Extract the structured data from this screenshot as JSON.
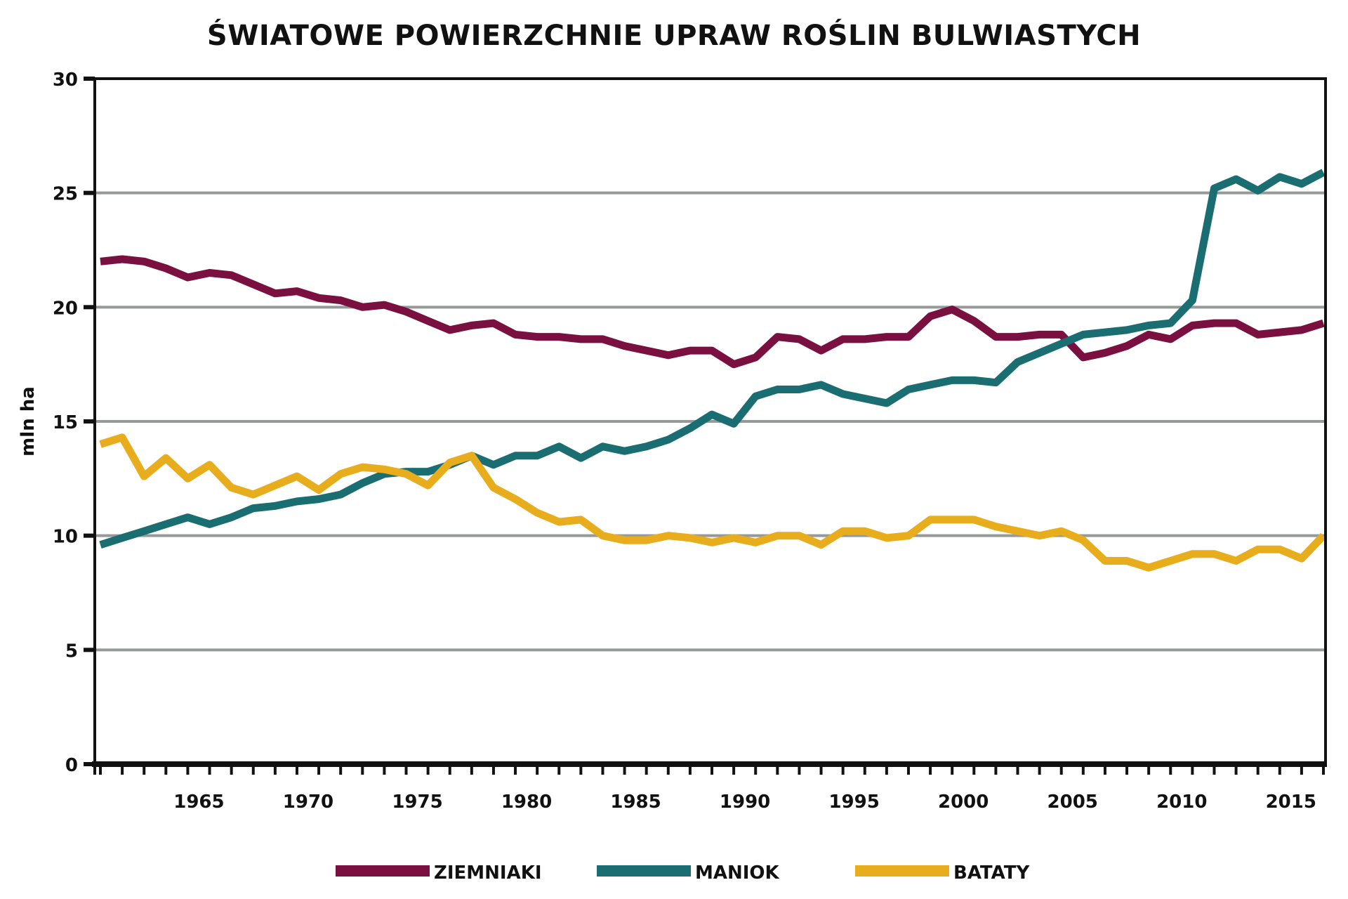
{
  "chart_data": {
    "type": "line",
    "title": "ŚWIATOWE POWIERZCHNIE UPRAW ROŚLIN BULWIASTYCH",
    "xlabel": "",
    "ylabel": "mln ha",
    "xlim": [
      1960.7,
      2017.3
    ],
    "ylim": [
      0,
      30
    ],
    "yticks": [
      0,
      5,
      10,
      15,
      20,
      25,
      30
    ],
    "xticks": [
      1965,
      1970,
      1975,
      1980,
      1985,
      1990,
      1995,
      2000,
      2005,
      2010,
      2015
    ],
    "grid": true,
    "legend": "bottom",
    "x": [
      1961,
      1962,
      1963,
      1964,
      1965,
      1966,
      1967,
      1968,
      1969,
      1970,
      1971,
      1972,
      1973,
      1974,
      1975,
      1976,
      1977,
      1978,
      1979,
      1980,
      1981,
      1982,
      1983,
      1984,
      1985,
      1986,
      1987,
      1988,
      1989,
      1990,
      1991,
      1992,
      1993,
      1994,
      1995,
      1996,
      1997,
      1998,
      1999,
      2000,
      2001,
      2002,
      2003,
      2004,
      2005,
      2006,
      2007,
      2008,
      2009,
      2010,
      2011,
      2012,
      2013,
      2014,
      2015,
      2016,
      2017
    ],
    "series": [
      {
        "name": "ZIEMNIAKI",
        "color": "#7a1040",
        "values": [
          22.0,
          22.1,
          22.0,
          21.7,
          21.3,
          21.5,
          21.4,
          21.0,
          20.6,
          20.7,
          20.4,
          20.3,
          20.0,
          20.1,
          19.8,
          19.4,
          19.0,
          19.2,
          19.3,
          18.8,
          18.7,
          18.7,
          18.6,
          18.6,
          18.3,
          18.1,
          17.9,
          18.1,
          18.1,
          17.5,
          17.8,
          18.7,
          18.6,
          18.1,
          18.6,
          18.6,
          18.7,
          18.7,
          19.6,
          19.9,
          19.4,
          18.7,
          18.7,
          18.8,
          18.8,
          17.8,
          18.0,
          18.3,
          18.8,
          18.6,
          19.2,
          19.3,
          19.3,
          18.8,
          18.9,
          19.0,
          19.3
        ]
      },
      {
        "name": "MANIOK",
        "color": "#1a6e72",
        "values": [
          9.6,
          9.9,
          10.2,
          10.5,
          10.8,
          10.5,
          10.8,
          11.2,
          11.3,
          11.5,
          11.6,
          11.8,
          12.3,
          12.7,
          12.8,
          12.8,
          13.1,
          13.5,
          13.1,
          13.5,
          13.5,
          13.9,
          13.4,
          13.9,
          13.7,
          13.9,
          14.2,
          14.7,
          15.3,
          14.9,
          16.1,
          16.4,
          16.4,
          16.6,
          16.2,
          16.0,
          15.8,
          16.4,
          16.6,
          16.8,
          16.8,
          16.7,
          17.6,
          18.0,
          18.4,
          18.8,
          18.9,
          19.0,
          19.2,
          19.3,
          20.3,
          25.2,
          25.6,
          25.1,
          25.7,
          25.4,
          25.9
        ]
      },
      {
        "name": "BATATY",
        "color": "#e8ad1c",
        "values": [
          14.0,
          14.3,
          12.6,
          13.4,
          12.5,
          13.1,
          12.1,
          11.8,
          12.2,
          12.6,
          12.0,
          12.7,
          13.0,
          12.9,
          12.7,
          12.2,
          13.2,
          13.5,
          12.1,
          11.6,
          11.0,
          10.6,
          10.7,
          10.0,
          9.8,
          9.8,
          10.0,
          9.9,
          9.7,
          9.9,
          9.7,
          10.0,
          10.0,
          9.6,
          10.2,
          10.2,
          9.9,
          10.0,
          10.7,
          10.7,
          10.7,
          10.4,
          10.2,
          10.0,
          10.2,
          9.8,
          8.9,
          8.9,
          8.6,
          8.9,
          9.2,
          9.2,
          8.9,
          9.4,
          9.4,
          9.0,
          10.0
        ]
      }
    ]
  }
}
